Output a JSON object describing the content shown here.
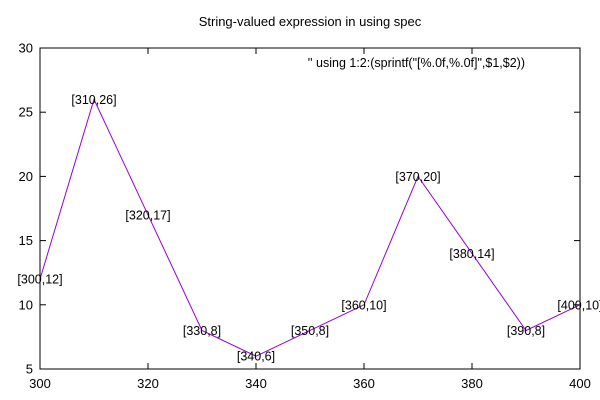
{
  "chart_data": {
    "type": "line",
    "title": "String-valued expression in using spec",
    "xlabel": "",
    "ylabel": "",
    "xlim": [
      300,
      400
    ],
    "ylim": [
      5,
      30
    ],
    "x_ticks": [
      300,
      320,
      340,
      360,
      380,
      400
    ],
    "y_ticks": [
      5,
      10,
      15,
      20,
      25,
      30
    ],
    "x_tick_labels": [
      "300",
      "320",
      "340",
      "360",
      "380",
      "400"
    ],
    "y_tick_labels": [
      "5",
      "10",
      "15",
      "20",
      "25",
      "30"
    ],
    "grid": false,
    "legend_position": "top-right",
    "series": [
      {
        "name": "'' using 1:2:(sprintf(\"[%.0f,%.0f]\",$1,$2))",
        "color": "#9400d3",
        "x": [
          300,
          310,
          320,
          330,
          340,
          350,
          360,
          370,
          380,
          390,
          400
        ],
        "y": [
          12,
          26,
          17,
          8,
          6,
          8,
          10,
          20,
          14,
          8,
          10
        ],
        "point_labels": [
          "[300,12]",
          "[310,26]",
          "[320,17]",
          "[330,8]",
          "[340,6]",
          "[350,8]",
          "[360,10]",
          "[370,20]",
          "[380,14]",
          "[390,8]",
          "[400,10]"
        ]
      }
    ]
  }
}
